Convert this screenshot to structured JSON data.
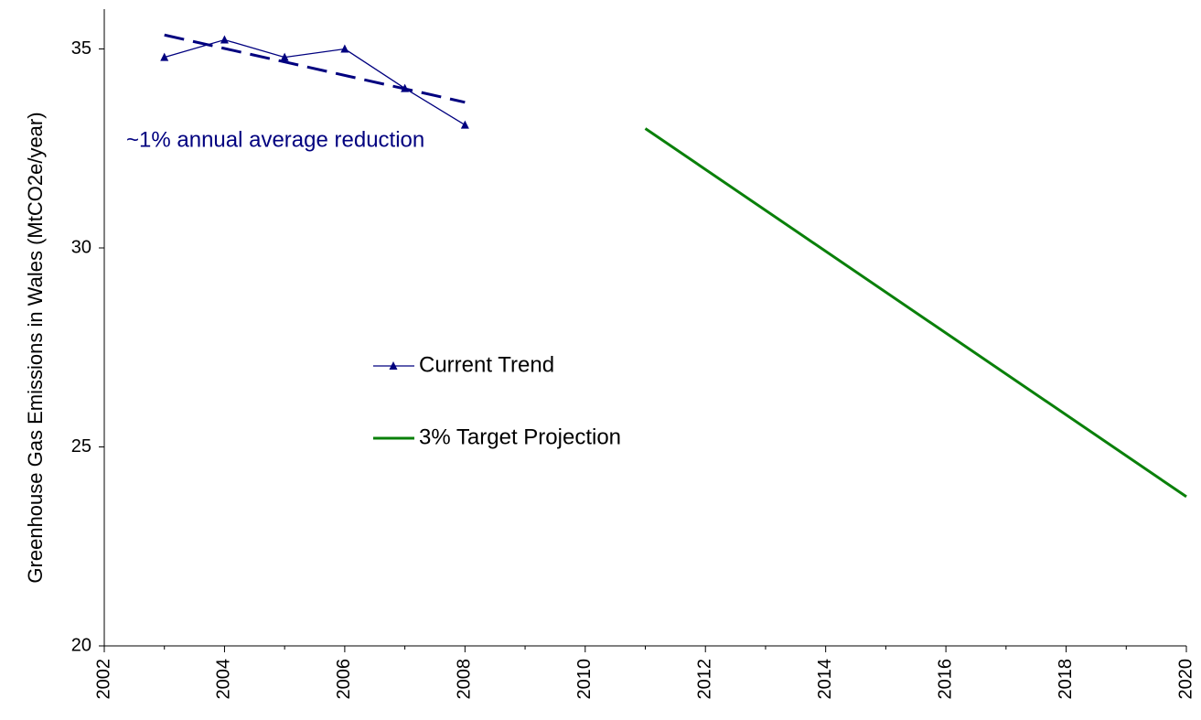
{
  "chart_data": {
    "type": "line",
    "y_label": "Greenhouse Gas Emissions in Wales (MtCO2e/year)",
    "annotation": "~1% annual average reduction",
    "annotation_color": "#00007f",
    "xlim": [
      2002,
      2020
    ],
    "xticks": [
      2002,
      2004,
      2006,
      2008,
      2010,
      2012,
      2014,
      2016,
      2018,
      2020
    ],
    "ylim": [
      20,
      36
    ],
    "yticks": [
      20,
      25,
      30,
      35
    ],
    "series": [
      {
        "name": "Current Trend",
        "color": "#00007f",
        "marker": "triangle",
        "x": [
          2003,
          2004,
          2005,
          2006,
          2007,
          2008
        ],
        "values": [
          34.79,
          35.23,
          34.79,
          35.0,
          34.01,
          33.09
        ]
      },
      {
        "name": "3% Target Projection",
        "color": "#0a800a",
        "x": [
          2011,
          2020
        ],
        "values": [
          33.0,
          23.75
        ]
      }
    ],
    "trendline": {
      "color": "#00007f",
      "x": [
        2003,
        2008
      ],
      "values": [
        35.35,
        33.66
      ]
    }
  }
}
